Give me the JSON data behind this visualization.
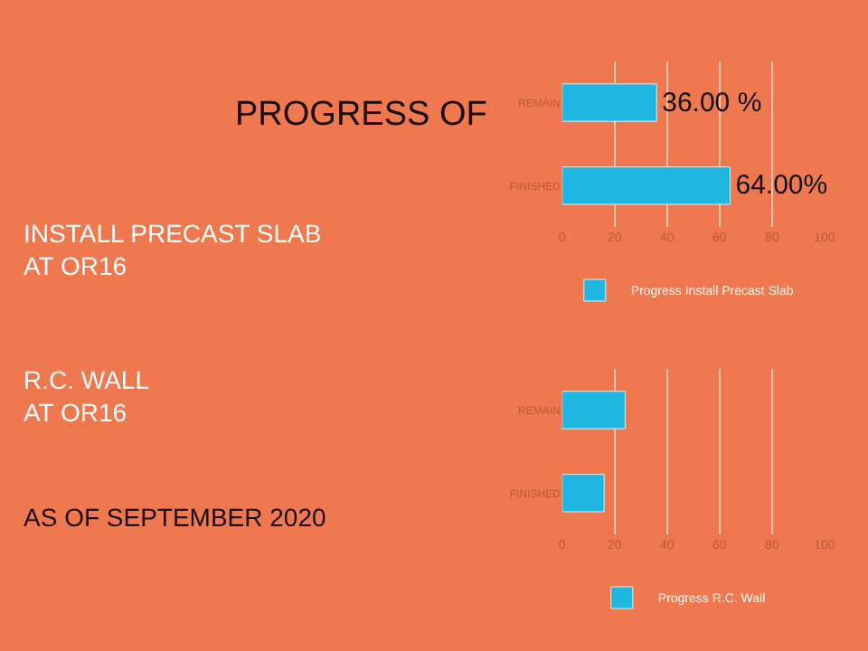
{
  "chart_data": [
    {
      "type": "bar",
      "orientation": "horizontal",
      "title": "PROGRESS OF",
      "annotations": [
        "INSTALL PRECAST SLAB\nAT OR16"
      ],
      "categories": [
        "REMAIN",
        "FINISHED"
      ],
      "series": [
        {
          "name": "Progress Install Precast Slab",
          "color": "#1fb6e0",
          "values": [
            36,
            64
          ],
          "value_labels": [
            "36.00 %",
            "64.00%"
          ]
        }
      ],
      "xlim": [
        0,
        100
      ],
      "xticks": [
        0,
        20,
        40,
        60,
        80,
        100
      ],
      "grid": "x",
      "legend": "bottom"
    },
    {
      "type": "bar",
      "orientation": "horizontal",
      "annotations": [
        "R.C. WALL\nAT OR16",
        "AS OF SEPTEMBER 2020"
      ],
      "categories": [
        "REMAIN",
        "FINISHED"
      ],
      "series": [
        {
          "name": "Progress R.C. Wall",
          "color": "#1fb6e0",
          "values": [
            24,
            16
          ]
        }
      ],
      "xlim": [
        0,
        100
      ],
      "xticks": [
        0,
        20,
        40,
        60,
        80,
        100
      ],
      "grid": "x",
      "legend": "bottom"
    }
  ]
}
